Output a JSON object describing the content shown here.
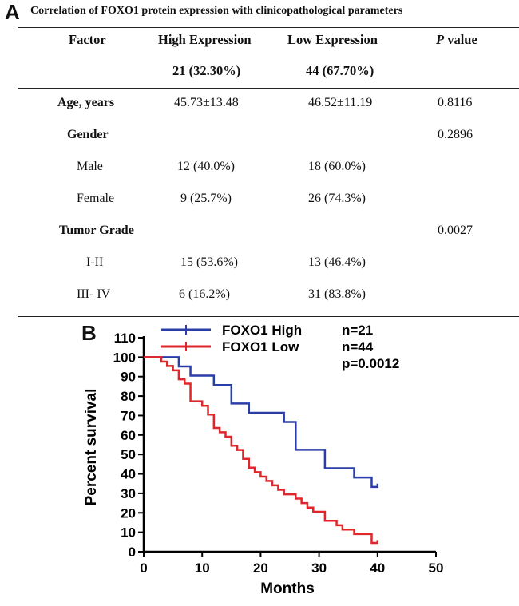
{
  "panel_a": {
    "label": "A",
    "caption": "Correlation of FOXO1 protein expression with clinicopathological parameters",
    "headers": {
      "factor": "Factor",
      "high": "High Expression",
      "low": "Low Expression",
      "p_italic": "P",
      "p_rest": " value"
    },
    "subheaders": {
      "high": "21 (32.30%)",
      "low": "44 (67.70%)"
    },
    "rows": [
      {
        "factor": "Age, years",
        "high": "45.73±13.48",
        "low": "46.52±11.19",
        "p": "0.8116"
      },
      {
        "factor": "Gender",
        "high": "",
        "low": "",
        "p": "0.2896"
      },
      {
        "factor": "Male",
        "high": "12 (40.0%)",
        "low": "18 (60.0%)",
        "p": ""
      },
      {
        "factor": "Female",
        "high": "9    (25.7%)",
        "low": "26 (74.3%)",
        "p": ""
      },
      {
        "factor": "Tumor Grade",
        "high": "",
        "low": "",
        "p": "0.0027"
      },
      {
        "factor": "I-II",
        "high": "15 (53.6%)",
        "low": "13 (46.4%)",
        "p": ""
      },
      {
        "factor": "III- IV",
        "high": "6 (16.2%)",
        "low": "31 (83.8%)",
        "p": ""
      }
    ]
  },
  "panel_b": {
    "label": "B"
  },
  "chart_data": {
    "type": "line",
    "title": "",
    "xlabel": "Months",
    "ylabel": "Percent survival",
    "xlim": [
      0,
      50
    ],
    "ylim": [
      0,
      110
    ],
    "xticks": [
      0,
      10,
      20,
      30,
      40,
      50
    ],
    "yticks": [
      0,
      10,
      20,
      30,
      40,
      50,
      60,
      70,
      80,
      90,
      100,
      110
    ],
    "legend_position": "top",
    "series": [
      {
        "name": "FOXO1  High",
        "n_label": "n=21",
        "color": "#2b3ea8",
        "x": [
          0,
          5,
          6,
          8,
          10,
          12,
          15,
          18,
          24,
          26,
          31,
          36,
          39,
          40
        ],
        "y": [
          100,
          100,
          95.2,
          90.5,
          90.5,
          85.7,
          76.2,
          71.4,
          66.7,
          52.4,
          42.9,
          38.1,
          33.3,
          35
        ]
      },
      {
        "name": "FOXO1  Low",
        "n_label": "n=44",
        "color": "#e0262a",
        "x": [
          0,
          3,
          4,
          5,
          6,
          7,
          8,
          10,
          11,
          12,
          13,
          14,
          15,
          16,
          17,
          18,
          19,
          20,
          21,
          22,
          23,
          24,
          26,
          27,
          28,
          29,
          31,
          33,
          34,
          36,
          39,
          40
        ],
        "y": [
          100,
          97.7,
          95.5,
          93.2,
          88.6,
          86.4,
          77.3,
          75,
          70.5,
          63.6,
          61.4,
          59.1,
          54.5,
          52.3,
          47.7,
          43.2,
          40.9,
          38.6,
          36.4,
          34.1,
          31.8,
          29.5,
          27.3,
          25,
          22.7,
          20.5,
          15.9,
          13.6,
          11.4,
          9.1,
          4.5,
          6
        ]
      }
    ],
    "annotations": [
      "p=0.0012"
    ]
  }
}
